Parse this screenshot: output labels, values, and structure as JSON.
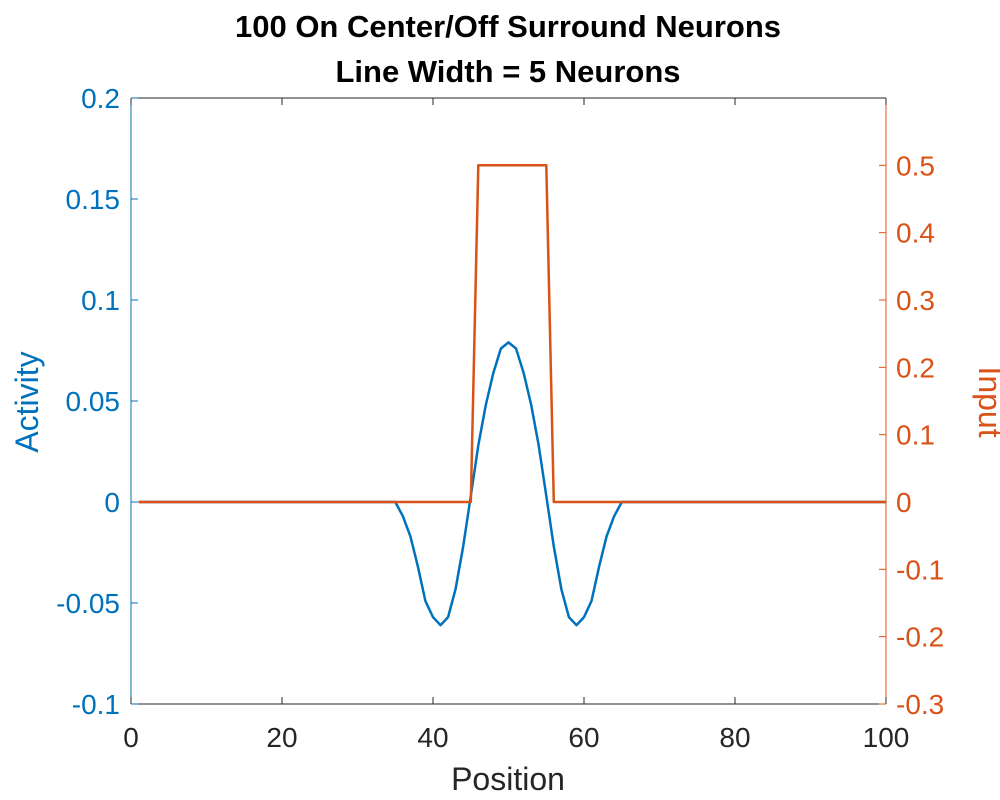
{
  "chart_data": {
    "type": "line",
    "title": [
      "100 On Center/Off Surround Neurons",
      "Line Width = 5 Neurons"
    ],
    "xlabel": "Position",
    "ylabel_left": "Activity",
    "ylabel_right": "Input",
    "xlim": [
      0,
      100
    ],
    "ylim_left": [
      -0.1,
      0.2
    ],
    "ylim_right": [
      -0.3,
      0.6
    ],
    "x_ticks": [
      0,
      20,
      40,
      60,
      80,
      100
    ],
    "x_tick_labels": [
      "0",
      "20",
      "40",
      "60",
      "80",
      "100"
    ],
    "y_left_ticks": [
      -0.1,
      -0.05,
      0,
      0.05,
      0.1,
      0.15,
      0.2
    ],
    "y_left_tick_labels": [
      "-0.1",
      "-0.05",
      "0",
      "0.05",
      "0.1",
      "0.15",
      "0.2"
    ],
    "y_right_ticks": [
      -0.3,
      -0.2,
      -0.1,
      0,
      0.1,
      0.2,
      0.3,
      0.4,
      0.5
    ],
    "y_right_tick_labels": [
      "-0.3",
      "-0.2",
      "-0.1",
      "0",
      "0.1",
      "0.2",
      "0.3",
      "0.4",
      "0.5"
    ],
    "grid": false,
    "series": [
      {
        "axis": "left",
        "color": "#0072BD",
        "x": [
          1,
          35,
          36,
          37,
          38,
          39,
          40,
          41,
          42,
          43,
          44,
          45,
          46,
          47,
          48,
          49,
          50,
          51,
          52,
          53,
          54,
          55,
          56,
          57,
          58,
          59,
          60,
          61,
          62,
          63,
          64,
          65,
          100
        ],
        "values": [
          0,
          0,
          -0.007,
          -0.017,
          -0.032,
          -0.049,
          -0.057,
          -0.061,
          -0.057,
          -0.043,
          -0.022,
          0.003,
          0.028,
          0.048,
          0.064,
          0.076,
          0.079,
          0.076,
          0.064,
          0.048,
          0.028,
          0.003,
          -0.022,
          -0.043,
          -0.057,
          -0.061,
          -0.057,
          -0.049,
          -0.032,
          -0.017,
          -0.007,
          0,
          0
        ]
      },
      {
        "axis": "right",
        "color": "#D95319",
        "x": [
          1,
          45,
          46,
          55,
          56,
          100
        ],
        "values": [
          0,
          0,
          0.5,
          0.5,
          0,
          0
        ]
      }
    ]
  }
}
